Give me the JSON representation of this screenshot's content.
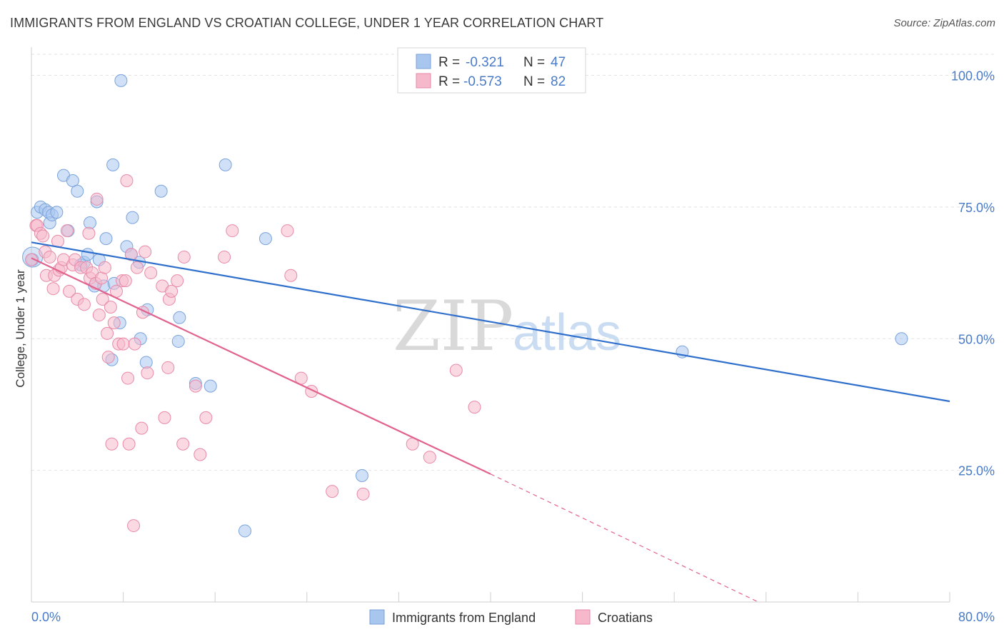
{
  "header": {
    "title": "IMMIGRANTS FROM ENGLAND VS CROATIAN COLLEGE, UNDER 1 YEAR CORRELATION CHART",
    "source": "Source: ZipAtlas.com"
  },
  "watermark": {
    "zip": "ZIP",
    "atlas": "atlas"
  },
  "colors": {
    "blue": "#4a7bc8",
    "blue_fill": "#a9c6ee",
    "blue_line": "#2f6fcc",
    "pink_fill": "#f6b9cc",
    "pink_stroke": "#e889a8",
    "pink_line": "#e2628e"
  },
  "chart_data": {
    "type": "scatter",
    "title": "IMMIGRANTS FROM ENGLAND VS CROATIAN COLLEGE, UNDER 1 YEAR CORRELATION CHART",
    "xlabel": "",
    "ylabel": "College, Under 1 year",
    "xlim": [
      0,
      80
    ],
    "ylim": [
      0,
      104
    ],
    "x_tick_labels": [
      "0.0%",
      "80.0%"
    ],
    "y_tick_labels": [
      "25.0%",
      "50.0%",
      "75.0%",
      "100.0%"
    ],
    "y_ticks": [
      25,
      50,
      75,
      100
    ],
    "grid": true,
    "legend": [
      {
        "r_label": "R =",
        "r": "-0.321",
        "n_label": "N =",
        "n": "47"
      },
      {
        "r_label": "R =",
        "r": "-0.573",
        "n_label": "N =",
        "n": "82"
      }
    ],
    "series": [
      {
        "name": "Immigrants from England",
        "color": "#a9c6ee",
        "trend": {
          "x": [
            0,
            80
          ],
          "y": [
            68.3,
            38.1
          ]
        },
        "points": [
          [
            0.1,
            65
          ],
          [
            0.5,
            74
          ],
          [
            0.8,
            75
          ],
          [
            1.2,
            74.5
          ],
          [
            1.5,
            74
          ],
          [
            1.6,
            72
          ],
          [
            1.8,
            73.5
          ],
          [
            2.2,
            74
          ],
          [
            2.8,
            81
          ],
          [
            3.2,
            70.5
          ],
          [
            3.6,
            80
          ],
          [
            4,
            78
          ],
          [
            4.3,
            64
          ],
          [
            4.6,
            64.5
          ],
          [
            4.9,
            66
          ],
          [
            5.1,
            72
          ],
          [
            5.5,
            60
          ],
          [
            5.7,
            76
          ],
          [
            5.9,
            65
          ],
          [
            6.3,
            60
          ],
          [
            6.5,
            69
          ],
          [
            7.0,
            46
          ],
          [
            7.1,
            83
          ],
          [
            7.2,
            60.5
          ],
          [
            7.7,
            53
          ],
          [
            7.8,
            99
          ],
          [
            8.3,
            67.5
          ],
          [
            8.7,
            66
          ],
          [
            8.8,
            73
          ],
          [
            9.4,
            64.5
          ],
          [
            9.5,
            50
          ],
          [
            10.1,
            55.5
          ],
          [
            10.0,
            45.5
          ],
          [
            11.3,
            78
          ],
          [
            12.9,
            54
          ],
          [
            12.8,
            49.5
          ],
          [
            14.3,
            41.5
          ],
          [
            15.6,
            41
          ],
          [
            16.9,
            83
          ],
          [
            18.6,
            13.5
          ],
          [
            20.4,
            69
          ],
          [
            28.8,
            24
          ],
          [
            32.8,
            100
          ],
          [
            56.7,
            47.5
          ],
          [
            75.8,
            50
          ]
        ]
      },
      {
        "name": "Croatians",
        "color": "#f6b9cc",
        "trend": {
          "x": [
            0,
            40
          ],
          "y": [
            65.3,
            24.3
          ],
          "dash_x": [
            40,
            68
          ],
          "dash_y": [
            24.3,
            -4.4
          ]
        },
        "points": [
          [
            0.0,
            65
          ],
          [
            0.4,
            71.5
          ],
          [
            0.5,
            71.5
          ],
          [
            0.8,
            70
          ],
          [
            1.0,
            69.5
          ],
          [
            1.2,
            66.5
          ],
          [
            1.3,
            62
          ],
          [
            1.6,
            65.5
          ],
          [
            1.9,
            59.5
          ],
          [
            2.0,
            62
          ],
          [
            2.3,
            68.5
          ],
          [
            2.4,
            63
          ],
          [
            2.6,
            63.5
          ],
          [
            2.8,
            65
          ],
          [
            3.1,
            70.5
          ],
          [
            3.3,
            59
          ],
          [
            3.6,
            64
          ],
          [
            3.8,
            65
          ],
          [
            4.0,
            57.5
          ],
          [
            4.3,
            63.5
          ],
          [
            4.6,
            56.5
          ],
          [
            4.8,
            63.5
          ],
          [
            5.0,
            70
          ],
          [
            5.1,
            61.5
          ],
          [
            5.3,
            62.5
          ],
          [
            5.6,
            60.5
          ],
          [
            5.7,
            76.5
          ],
          [
            5.9,
            54.5
          ],
          [
            6.1,
            61.5
          ],
          [
            6.2,
            57.5
          ],
          [
            6.4,
            63.5
          ],
          [
            6.6,
            51
          ],
          [
            6.7,
            46.5
          ],
          [
            6.9,
            56
          ],
          [
            7.0,
            30
          ],
          [
            7.2,
            53
          ],
          [
            7.4,
            59
          ],
          [
            7.6,
            49
          ],
          [
            7.9,
            61
          ],
          [
            8.0,
            49
          ],
          [
            8.2,
            61
          ],
          [
            8.3,
            80
          ],
          [
            8.4,
            42.5
          ],
          [
            8.5,
            30
          ],
          [
            8.7,
            66
          ],
          [
            8.9,
            14.5
          ],
          [
            9.0,
            49
          ],
          [
            9.2,
            63.5
          ],
          [
            9.6,
            33
          ],
          [
            9.7,
            55
          ],
          [
            9.9,
            66.5
          ],
          [
            10.1,
            43.5
          ],
          [
            10.4,
            62.5
          ],
          [
            11.4,
            60
          ],
          [
            11.6,
            35
          ],
          [
            11.9,
            44.5
          ],
          [
            12.0,
            57.5
          ],
          [
            12.2,
            59
          ],
          [
            12.7,
            61
          ],
          [
            13.2,
            30
          ],
          [
            13.3,
            65.5
          ],
          [
            14.3,
            41
          ],
          [
            14.7,
            28
          ],
          [
            15.2,
            35
          ],
          [
            16.8,
            65.5
          ],
          [
            17.5,
            70.5
          ],
          [
            22.3,
            70.5
          ],
          [
            22.6,
            62
          ],
          [
            23.5,
            42.5
          ],
          [
            24.4,
            40
          ],
          [
            26.2,
            21
          ],
          [
            28.9,
            20.5
          ],
          [
            33.2,
            30
          ],
          [
            34.7,
            27.5
          ],
          [
            37.0,
            44
          ],
          [
            38.6,
            37
          ]
        ]
      }
    ]
  },
  "bottom_legend": {
    "items": [
      {
        "label": "Immigrants from England"
      },
      {
        "label": "Croatians"
      }
    ]
  }
}
